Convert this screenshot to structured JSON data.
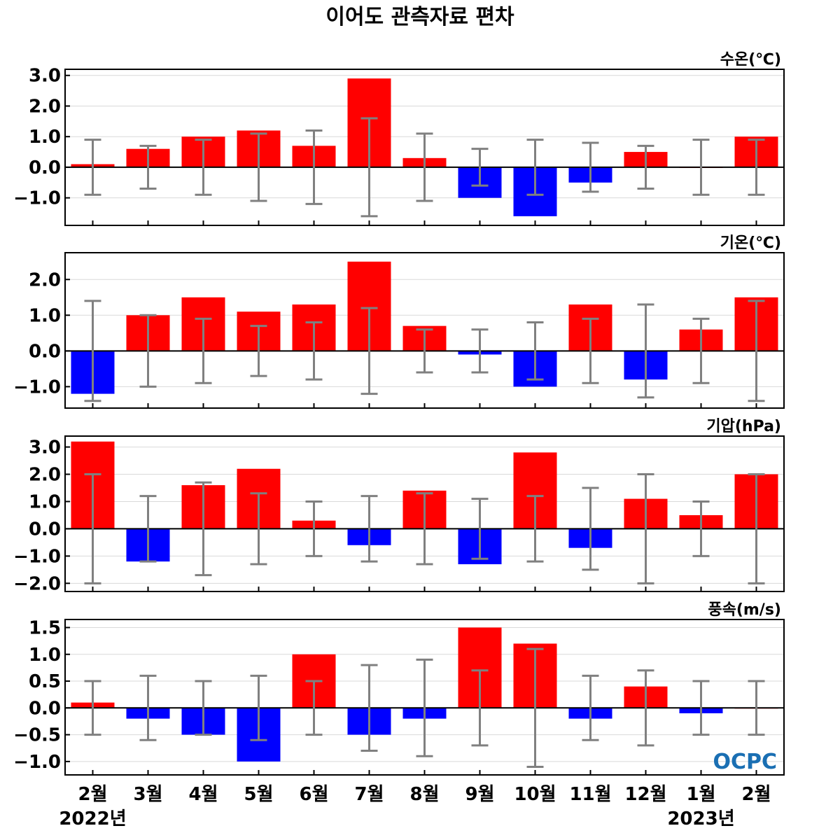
{
  "page_title": "이어도 관측자료 편차",
  "logo_text": "OCPC",
  "colors": {
    "positive": "#ff0000",
    "negative": "#0000ff",
    "error_bar": "#808080",
    "zero_line": "#000000",
    "grid": "#d9d9d9"
  },
  "chart_data": [
    {
      "type": "bar",
      "title": "수온(℃)",
      "categories": [
        "2월",
        "3월",
        "4월",
        "5월",
        "6월",
        "7월",
        "8월",
        "9월",
        "10월",
        "11월",
        "12월",
        "1월",
        "2월"
      ],
      "values": [
        0.1,
        0.6,
        1.0,
        1.2,
        0.7,
        2.9,
        0.3,
        -1.0,
        -1.6,
        -0.5,
        0.5,
        0.0,
        1.0
      ],
      "error_bars": [
        0.9,
        0.7,
        0.9,
        1.1,
        1.2,
        1.6,
        1.1,
        0.6,
        0.9,
        0.8,
        0.7,
        0.9,
        0.9
      ],
      "ylim": [
        -1.9,
        3.2
      ],
      "yticks": [
        "3.0",
        "2.0",
        "1.0",
        "0.0",
        "−1.0"
      ],
      "ytick_values": [
        3,
        2,
        1,
        0,
        -1
      ],
      "grid": true
    },
    {
      "type": "bar",
      "title": "기온(℃)",
      "categories": [
        "2월",
        "3월",
        "4월",
        "5월",
        "6월",
        "7월",
        "8월",
        "9월",
        "10월",
        "11월",
        "12월",
        "1월",
        "2월"
      ],
      "values": [
        -1.2,
        1.0,
        1.5,
        1.1,
        1.3,
        2.5,
        0.7,
        -0.1,
        -1.0,
        1.3,
        -0.8,
        0.6,
        1.5
      ],
      "error_bars": [
        1.4,
        1.0,
        0.9,
        0.7,
        0.8,
        1.2,
        0.6,
        0.6,
        0.8,
        0.9,
        1.3,
        0.9,
        1.4
      ],
      "ylim": [
        -1.6,
        2.75
      ],
      "yticks": [
        "2.0",
        "1.0",
        "0.0",
        "−1.0"
      ],
      "ytick_values": [
        2,
        1,
        0,
        -1
      ],
      "grid": true
    },
    {
      "type": "bar",
      "title": "기압(hPa)",
      "categories": [
        "2월",
        "3월",
        "4월",
        "5월",
        "6월",
        "7월",
        "8월",
        "9월",
        "10월",
        "11월",
        "12월",
        "1월",
        "2월"
      ],
      "values": [
        3.2,
        -1.2,
        1.6,
        2.2,
        0.3,
        -0.6,
        1.4,
        -1.3,
        2.8,
        -0.7,
        1.1,
        0.5,
        2.0
      ],
      "error_bars": [
        2.0,
        1.2,
        1.7,
        1.3,
        1.0,
        1.2,
        1.3,
        1.1,
        1.2,
        1.5,
        2.0,
        1.0,
        2.0
      ],
      "ylim": [
        -2.3,
        3.4
      ],
      "yticks": [
        "3.0",
        "2.0",
        "1.0",
        "0.0",
        "−1.0",
        "−2.0"
      ],
      "ytick_values": [
        3,
        2,
        1,
        0,
        -1,
        -2
      ],
      "grid": true
    },
    {
      "type": "bar",
      "title": "풍속(m/s)",
      "categories": [
        "2월",
        "3월",
        "4월",
        "5월",
        "6월",
        "7월",
        "8월",
        "9월",
        "10월",
        "11월",
        "12월",
        "1월",
        "2월"
      ],
      "values": [
        0.1,
        -0.2,
        -0.5,
        -1.0,
        1.0,
        -0.5,
        -0.2,
        1.5,
        1.2,
        -0.2,
        0.4,
        -0.1,
        0.0
      ],
      "error_bars": [
        0.5,
        0.6,
        0.5,
        0.6,
        0.5,
        0.8,
        0.9,
        0.7,
        1.1,
        0.6,
        0.7,
        0.5,
        0.5
      ],
      "ylim": [
        -1.25,
        1.65
      ],
      "yticks": [
        "1.5",
        "1.0",
        "0.5",
        "0.0",
        "−0.5",
        "−1.0"
      ],
      "ytick_values": [
        1.5,
        1.0,
        0.5,
        0,
        -0.5,
        -1.0
      ],
      "grid": true
    }
  ],
  "x_axis": {
    "labels": [
      "2월",
      "3월",
      "4월",
      "5월",
      "6월",
      "7월",
      "8월",
      "9월",
      "10월",
      "11월",
      "12월",
      "1월",
      "2월"
    ],
    "year_labels": [
      {
        "text": "2022년",
        "index": 0
      },
      {
        "text": "2023년",
        "index": 11
      }
    ]
  }
}
